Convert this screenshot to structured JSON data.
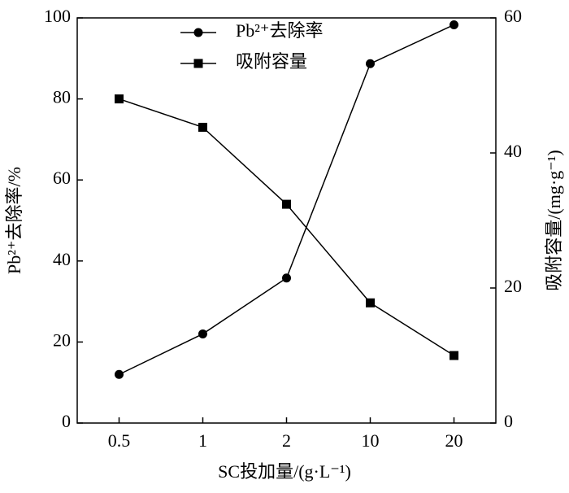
{
  "chart_data": {
    "type": "line",
    "xlabel": "SC投加量/(g·L⁻¹)",
    "ylabel": "Pb²⁺去除率/%",
    "y2label": "吸附容量/(mg·g⁻¹)",
    "categories": [
      "0.5",
      "1",
      "2",
      "10",
      "20"
    ],
    "series": [
      {
        "name": "Pb²⁺去除率",
        "color": "#000000",
        "marker": "circle",
        "values": [
          12,
          22,
          35.8,
          88.7,
          98.3
        ]
      },
      {
        "name": "吸附容量",
        "color": "#000000",
        "marker": "square",
        "axis": "y2",
        "values": [
          48,
          43.8,
          32.4,
          17.8,
          10
        ]
      }
    ],
    "ylim": [
      0,
      100
    ],
    "yticks": [
      0,
      20,
      40,
      60,
      80,
      100
    ],
    "y2lim": [
      0,
      60
    ],
    "y2ticks": [
      0,
      20,
      40,
      60
    ],
    "grid": false
  }
}
